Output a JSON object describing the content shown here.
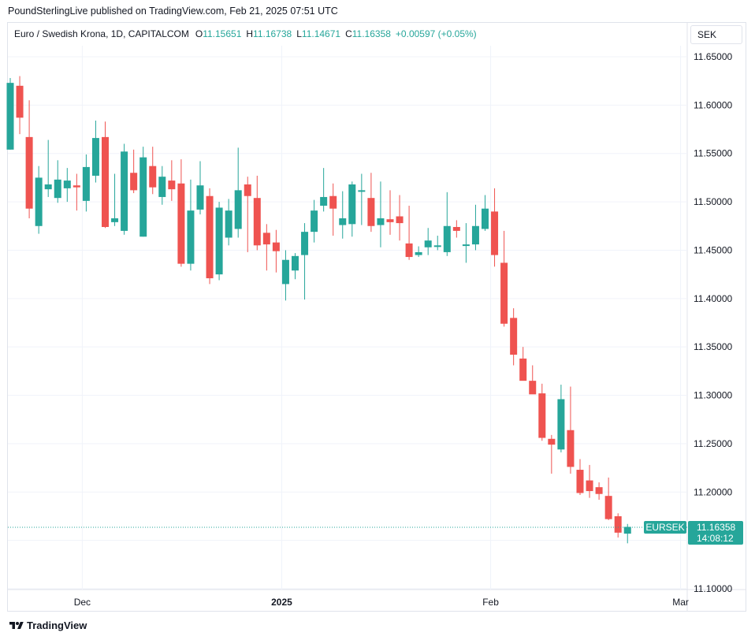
{
  "header": {
    "published": "PoundSterlingLive published on TradingView.com, Feb 21, 2025 07:51 UTC"
  },
  "legend": {
    "symbol": "Euro / Swedish Krona, 1D, CAPITALCOM",
    "open_label": "O",
    "open": "11.15651",
    "high_label": "H",
    "high": "11.16738",
    "low_label": "L",
    "low": "11.14671",
    "close_label": "C",
    "close": "11.16358",
    "change": "+0.00597 (+0.05%)"
  },
  "unit": "SEK",
  "footer": {
    "brand": "TradingView"
  },
  "colors": {
    "up": "#26a69a",
    "down": "#ef5350",
    "grid": "#f0f3fa",
    "text": "#131722"
  },
  "chart_data": {
    "type": "candlestick",
    "ylim": [
      11.09,
      11.665
    ],
    "y_ticks": [
      "11.65000",
      "11.60000",
      "11.55000",
      "11.50000",
      "11.45000",
      "11.40000",
      "11.35000",
      "11.30000",
      "11.25000",
      "11.20000",
      "11.15000",
      "11.10000"
    ],
    "x_ticks": [
      {
        "label": "Dec",
        "bold": false,
        "at_index": 8
      },
      {
        "label": "2025",
        "bold": true,
        "at_index": 29
      },
      {
        "label": "Feb",
        "bold": false,
        "at_index": 51
      },
      {
        "label": "Mar",
        "bold": false,
        "at_index": 71
      }
    ],
    "last_price": {
      "symbol": "EURSEK",
      "price": "11.16358",
      "countdown": "14:08:12",
      "value": 11.16358
    },
    "candles": [
      {
        "o": 11.554,
        "h": 11.628,
        "l": 11.554,
        "c": 11.623
      },
      {
        "o": 11.62,
        "h": 11.63,
        "l": 11.57,
        "c": 11.587
      },
      {
        "o": 11.567,
        "h": 11.605,
        "l": 11.483,
        "c": 11.493
      },
      {
        "o": 11.475,
        "h": 11.537,
        "l": 11.467,
        "c": 11.525
      },
      {
        "o": 11.513,
        "h": 11.564,
        "l": 11.505,
        "c": 11.518
      },
      {
        "o": 11.504,
        "h": 11.543,
        "l": 11.499,
        "c": 11.523
      },
      {
        "o": 11.514,
        "h": 11.535,
        "l": 11.5,
        "c": 11.522
      },
      {
        "o": 11.517,
        "h": 11.529,
        "l": 11.491,
        "c": 11.515
      },
      {
        "o": 11.501,
        "h": 11.549,
        "l": 11.49,
        "c": 11.536
      },
      {
        "o": 11.527,
        "h": 11.584,
        "l": 11.52,
        "c": 11.566
      },
      {
        "o": 11.567,
        "h": 11.583,
        "l": 11.473,
        "c": 11.474
      },
      {
        "o": 11.479,
        "h": 11.529,
        "l": 11.475,
        "c": 11.483
      },
      {
        "o": 11.47,
        "h": 11.56,
        "l": 11.466,
        "c": 11.552
      },
      {
        "o": 11.53,
        "h": 11.554,
        "l": 11.509,
        "c": 11.512
      },
      {
        "o": 11.464,
        "h": 11.557,
        "l": 11.464,
        "c": 11.546
      },
      {
        "o": 11.537,
        "h": 11.557,
        "l": 11.508,
        "c": 11.515
      },
      {
        "o": 11.505,
        "h": 11.537,
        "l": 11.497,
        "c": 11.526
      },
      {
        "o": 11.522,
        "h": 11.543,
        "l": 11.501,
        "c": 11.513
      },
      {
        "o": 11.519,
        "h": 11.544,
        "l": 11.433,
        "c": 11.436
      },
      {
        "o": 11.436,
        "h": 11.523,
        "l": 11.429,
        "c": 11.491
      },
      {
        "o": 11.492,
        "h": 11.542,
        "l": 11.487,
        "c": 11.517
      },
      {
        "o": 11.506,
        "h": 11.514,
        "l": 11.415,
        "c": 11.421
      },
      {
        "o": 11.425,
        "h": 11.5,
        "l": 11.419,
        "c": 11.494
      },
      {
        "o": 11.463,
        "h": 11.503,
        "l": 11.455,
        "c": 11.491
      },
      {
        "o": 11.472,
        "h": 11.556,
        "l": 11.463,
        "c": 11.512
      },
      {
        "o": 11.518,
        "h": 11.526,
        "l": 11.448,
        "c": 11.506
      },
      {
        "o": 11.504,
        "h": 11.527,
        "l": 11.45,
        "c": 11.455
      },
      {
        "o": 11.468,
        "h": 11.477,
        "l": 11.429,
        "c": 11.456
      },
      {
        "o": 11.458,
        "h": 11.471,
        "l": 11.427,
        "c": 11.449
      },
      {
        "o": 11.415,
        "h": 11.45,
        "l": 11.398,
        "c": 11.44
      },
      {
        "o": 11.429,
        "h": 11.447,
        "l": 11.42,
        "c": 11.444
      },
      {
        "o": 11.445,
        "h": 11.478,
        "l": 11.399,
        "c": 11.469
      },
      {
        "o": 11.469,
        "h": 11.502,
        "l": 11.458,
        "c": 11.491
      },
      {
        "o": 11.496,
        "h": 11.535,
        "l": 11.49,
        "c": 11.505
      },
      {
        "o": 11.506,
        "h": 11.519,
        "l": 11.465,
        "c": 11.493
      },
      {
        "o": 11.476,
        "h": 11.511,
        "l": 11.462,
        "c": 11.483
      },
      {
        "o": 11.477,
        "h": 11.521,
        "l": 11.464,
        "c": 11.518
      },
      {
        "o": 11.511,
        "h": 11.529,
        "l": 11.476,
        "c": 11.512
      },
      {
        "o": 11.504,
        "h": 11.53,
        "l": 11.469,
        "c": 11.475
      },
      {
        "o": 11.476,
        "h": 11.521,
        "l": 11.453,
        "c": 11.483
      },
      {
        "o": 11.482,
        "h": 11.512,
        "l": 11.466,
        "c": 11.479
      },
      {
        "o": 11.485,
        "h": 11.507,
        "l": 11.46,
        "c": 11.478
      },
      {
        "o": 11.457,
        "h": 11.496,
        "l": 11.44,
        "c": 11.443
      },
      {
        "o": 11.445,
        "h": 11.454,
        "l": 11.443,
        "c": 11.448
      },
      {
        "o": 11.453,
        "h": 11.473,
        "l": 11.445,
        "c": 11.46
      },
      {
        "o": 11.455,
        "h": 11.465,
        "l": 11.45,
        "c": 11.455
      },
      {
        "o": 11.448,
        "h": 11.51,
        "l": 11.444,
        "c": 11.475
      },
      {
        "o": 11.474,
        "h": 11.481,
        "l": 11.463,
        "c": 11.47
      },
      {
        "o": 11.455,
        "h": 11.478,
        "l": 11.437,
        "c": 11.456
      },
      {
        "o": 11.456,
        "h": 11.497,
        "l": 11.45,
        "c": 11.475
      },
      {
        "o": 11.472,
        "h": 11.507,
        "l": 11.47,
        "c": 11.493
      },
      {
        "o": 11.49,
        "h": 11.514,
        "l": 11.433,
        "c": 11.445
      },
      {
        "o": 11.437,
        "h": 11.47,
        "l": 11.371,
        "c": 11.374
      },
      {
        "o": 11.38,
        "h": 11.39,
        "l": 11.331,
        "c": 11.342
      },
      {
        "o": 11.338,
        "h": 11.35,
        "l": 11.317,
        "c": 11.315
      },
      {
        "o": 11.315,
        "h": 11.331,
        "l": 11.302,
        "c": 11.301
      },
      {
        "o": 11.302,
        "h": 11.312,
        "l": 11.253,
        "c": 11.256
      },
      {
        "o": 11.255,
        "h": 11.259,
        "l": 11.219,
        "c": 11.249
      },
      {
        "o": 11.244,
        "h": 11.311,
        "l": 11.241,
        "c": 11.296
      },
      {
        "o": 11.264,
        "h": 11.309,
        "l": 11.219,
        "c": 11.226
      },
      {
        "o": 11.223,
        "h": 11.234,
        "l": 11.197,
        "c": 11.199
      },
      {
        "o": 11.212,
        "h": 11.228,
        "l": 11.194,
        "c": 11.201
      },
      {
        "o": 11.205,
        "h": 11.21,
        "l": 11.192,
        "c": 11.198
      },
      {
        "o": 11.196,
        "h": 11.215,
        "l": 11.171,
        "c": 11.172
      },
      {
        "o": 11.175,
        "h": 11.178,
        "l": 11.153,
        "c": 11.158
      },
      {
        "o": 11.157,
        "h": 11.167,
        "l": 11.147,
        "c": 11.164
      }
    ]
  }
}
